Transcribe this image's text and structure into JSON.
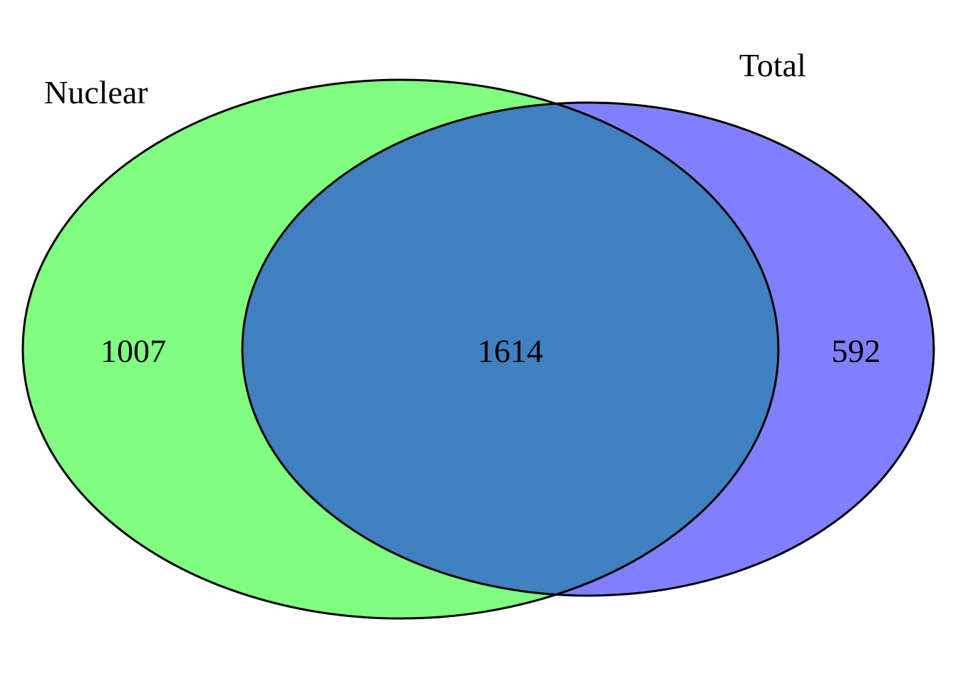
{
  "diagram": {
    "type": "venn",
    "sets": [
      {
        "name": "Nuclear",
        "color": "#80ff80"
      },
      {
        "name": "Total",
        "color": "#8080ff"
      }
    ],
    "overlap_color": "#4080c0",
    "outline_color": "#000000",
    "regions": {
      "nuclear_only": "1007",
      "intersection": "1614",
      "total_only": "592"
    }
  }
}
